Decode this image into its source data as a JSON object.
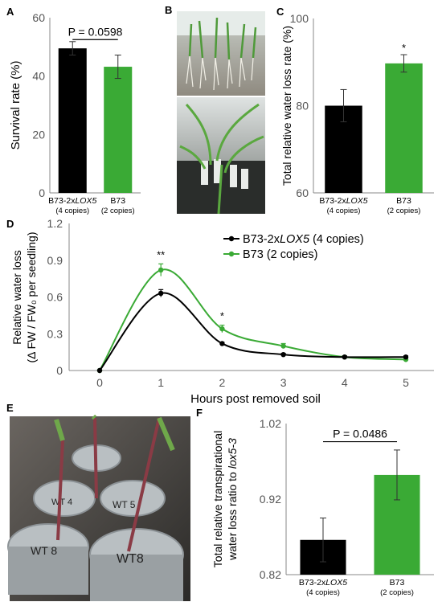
{
  "colors": {
    "black_series": "#000000",
    "green_series": "#3aaa35",
    "axis": "#888888"
  },
  "chart_data": [
    {
      "panel": "A",
      "type": "bar",
      "ylabel": "Survival rate (%)",
      "ylim": [
        0,
        60
      ],
      "yticks": [
        "0",
        "20",
        "40",
        "60"
      ],
      "categories": [
        {
          "line1": "B73-2xLOX5",
          "line1_italic": "LOX5",
          "line2": "(4 copies)"
        },
        {
          "line1": "B73",
          "line2": "(2 copies)"
        }
      ],
      "values": [
        49.5,
        43.2
      ],
      "errors": [
        2.3,
        4.0
      ],
      "bar_colors": [
        "#000000",
        "#3aaa35"
      ],
      "annotation": "P = 0.0598"
    },
    {
      "panel": "C",
      "type": "bar",
      "ylabel": "Total relative water loss rate (%)",
      "ylim": [
        60,
        100
      ],
      "yticks": [
        "60",
        "80",
        "100"
      ],
      "categories": [
        {
          "line1": "B73-2xLOX5",
          "line1_italic": "LOX5",
          "line2": "(4 copies)"
        },
        {
          "line1": "B73",
          "line2": "(2 copies)"
        }
      ],
      "values": [
        80,
        89.7
      ],
      "errors": [
        3.7,
        2.0
      ],
      "bar_colors": [
        "#000000",
        "#3aaa35"
      ],
      "significance": [
        "",
        "*"
      ]
    },
    {
      "panel": "D",
      "type": "line",
      "ylabel_line1": "Relative water loss",
      "ylabel_line2": "(Δ FW / FW₀ per seedling)",
      "xlabel": "Hours post removed soil",
      "xlim": [
        0,
        5
      ],
      "ylim": [
        0,
        1.2
      ],
      "xticks": [
        "0",
        "1",
        "2",
        "3",
        "4",
        "5"
      ],
      "yticks": [
        "0",
        "0.3",
        "0.6",
        "0.9",
        "1.2"
      ],
      "x": [
        0,
        1,
        2,
        3,
        4,
        5
      ],
      "series": [
        {
          "name": "B73-2xLOX5 (4 copies)",
          "name_plain": "B73-2x",
          "name_italic": "LOX5",
          "name_rest": " (4 copies)",
          "color": "#000000",
          "values": [
            0,
            0.63,
            0.22,
            0.13,
            0.11,
            0.11
          ],
          "errors": [
            0,
            0.03,
            0.01,
            0.01,
            0.01,
            0.01
          ]
        },
        {
          "name": "B73 (2 copies)",
          "name_plain": "B73 (2 copies)",
          "name_italic": "",
          "name_rest": "",
          "color": "#3aaa35",
          "values": [
            0,
            0.82,
            0.34,
            0.2,
            0.11,
            0.09
          ],
          "errors": [
            0,
            0.05,
            0.03,
            0.02,
            0.01,
            0.01
          ]
        }
      ],
      "significance": [
        {
          "x": 1,
          "label": "**"
        },
        {
          "x": 2,
          "label": "*"
        }
      ],
      "legend": "top-right"
    },
    {
      "panel": "F",
      "type": "bar",
      "ylabel_line1": "Total relative transpirational",
      "ylabel_line2_plain": "water loss ratio to ",
      "ylabel_line2_italic": "lox5-3",
      "ylim": [
        0.82,
        1.02
      ],
      "yticks": [
        "0.82",
        "0.92",
        "1.02"
      ],
      "categories": [
        {
          "line1": "B73-2xLOX5",
          "line1_italic": "LOX5",
          "line2": "(4 copies)"
        },
        {
          "line1": "B73",
          "line2": "(2 copies)"
        }
      ],
      "values": [
        0.866,
        0.952
      ],
      "errors": [
        0.029,
        0.033
      ],
      "bar_colors": [
        "#000000",
        "#3aaa35"
      ],
      "annotation": "P = 0.0486"
    }
  ],
  "panel_labels": [
    "A",
    "B",
    "C",
    "D",
    "E",
    "F"
  ],
  "photo_labels": [
    "WT 5",
    "WT 8",
    "WT8",
    "WT 4"
  ]
}
